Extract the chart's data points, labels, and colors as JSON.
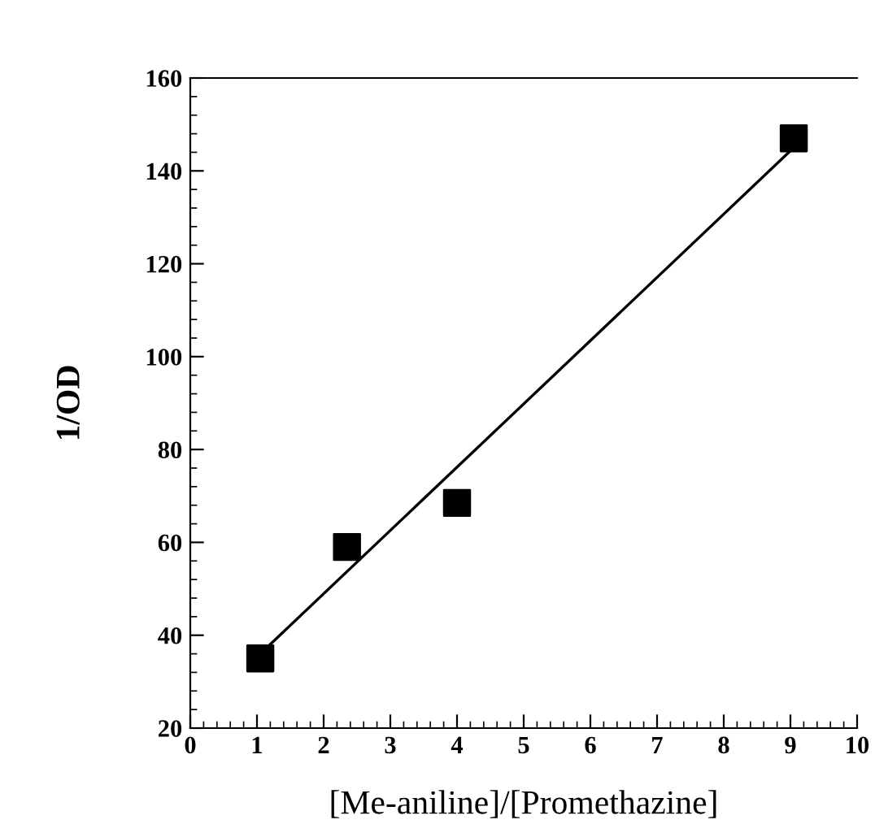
{
  "chart_data": {
    "type": "scatter",
    "xlabel": "[Me-aniline]/[Promethazine]",
    "ylabel": "1/OD",
    "x": [
      1.05,
      2.35,
      4.0,
      9.05
    ],
    "series": [
      {
        "color": "#000000",
        "marker": "square",
        "values": [
          35,
          59,
          68.5,
          147
        ]
      },
      {
        "type": "line",
        "color": "#000000",
        "marker": "none",
        "line_style": "solid",
        "x": [
          1.05,
          9.05
        ],
        "values": [
          36,
          145
        ]
      }
    ],
    "xlim": [
      0,
      10
    ],
    "ylim": [
      20,
      160
    ],
    "xticks": [
      0,
      1,
      2,
      3,
      4,
      5,
      6,
      7,
      8,
      9,
      10
    ],
    "yticks": [
      20,
      40,
      60,
      80,
      100,
      120,
      140,
      160
    ],
    "grid": false,
    "legend": false
  }
}
